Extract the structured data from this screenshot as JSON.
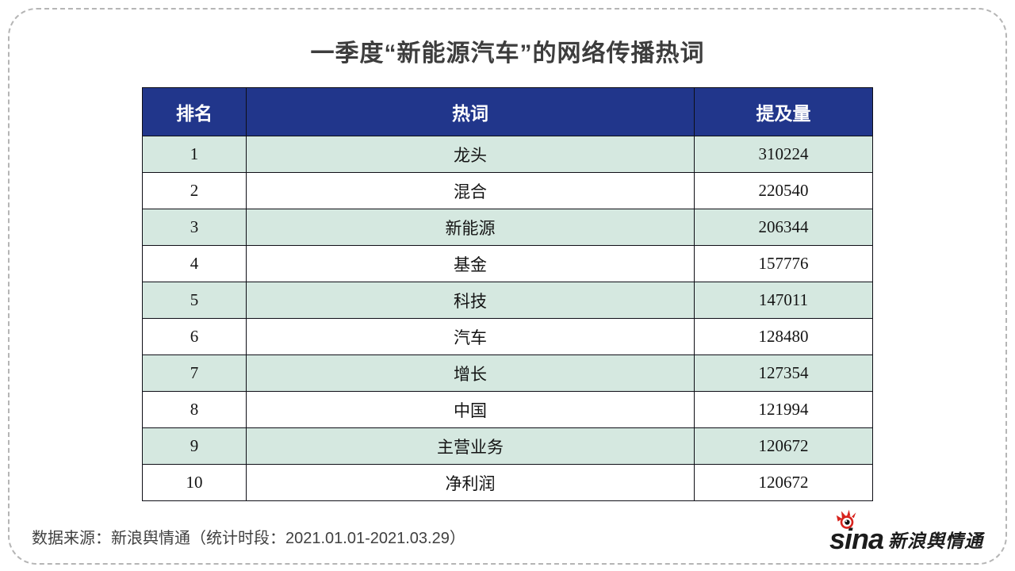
{
  "page": {
    "title": "一季度“新能源汽车”的网络传播热词",
    "source_note": "数据来源：新浪舆情通（统计时段：2021.01.01-2021.03.29）"
  },
  "logo": {
    "brand": "sina",
    "brand_cn": "新浪舆情通",
    "eye_color": "#D7231D",
    "text_color": "#1C1C1C"
  },
  "colors": {
    "header_bg": "#21368B",
    "header_text": "#FFFFFF",
    "stripe_bg": "#D5E8E0",
    "row_bg": "#FFFFFF",
    "table_border": "#0E0E16",
    "title_text": "#3D3D3D",
    "note_text": "#404040",
    "frame_border": "#B5B5B5"
  },
  "chart_data": {
    "type": "table",
    "title": "一季度“新能源汽车”的网络传播热词",
    "columns": [
      "排名",
      "热词",
      "提及量"
    ],
    "rows": [
      {
        "rank": "1",
        "hotword": "龙头",
        "mentions": "310224"
      },
      {
        "rank": "2",
        "hotword": "混合",
        "mentions": "220540"
      },
      {
        "rank": "3",
        "hotword": "新能源",
        "mentions": "206344"
      },
      {
        "rank": "4",
        "hotword": "基金",
        "mentions": "157776"
      },
      {
        "rank": "5",
        "hotword": "科技",
        "mentions": "147011"
      },
      {
        "rank": "6",
        "hotword": "汽车",
        "mentions": "128480"
      },
      {
        "rank": "7",
        "hotword": "增长",
        "mentions": "127354"
      },
      {
        "rank": "8",
        "hotword": "中国",
        "mentions": "121994"
      },
      {
        "rank": "9",
        "hotword": "主营业务",
        "mentions": "120672"
      },
      {
        "rank": "10",
        "hotword": "净利润",
        "mentions": "120672"
      }
    ],
    "source_note": "数据来源：新浪舆情通（统计时段：2021.01.01-2021.03.29）"
  }
}
